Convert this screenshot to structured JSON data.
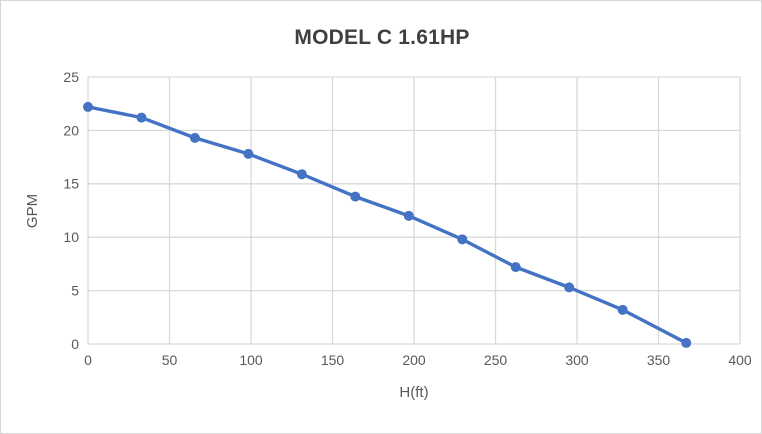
{
  "chart_data": {
    "type": "line",
    "title": "MODEL C 1.61HP",
    "xlabel": "H(ft)",
    "ylabel": "GPM",
    "xlim": [
      0,
      400
    ],
    "ylim": [
      0,
      25
    ],
    "xticks": [
      0,
      50,
      100,
      150,
      200,
      250,
      300,
      350,
      400
    ],
    "yticks": [
      0,
      5,
      10,
      15,
      20,
      25
    ],
    "grid": true,
    "legend": "none",
    "series": [
      {
        "name": "GPM vs H(ft)",
        "marker": "circle",
        "x": [
          0,
          32.8,
          65.6,
          98.4,
          131.2,
          164,
          196.8,
          229.6,
          262.4,
          295.2,
          328,
          367
        ],
        "y": [
          22.2,
          21.2,
          19.3,
          17.8,
          15.9,
          13.8,
          12.0,
          9.8,
          7.2,
          5.3,
          3.2,
          0.1
        ]
      }
    ]
  },
  "colors": {
    "series": "#4472C4",
    "grid": "#d9d9d9",
    "axis_text": "#595959",
    "title_text": "#404040",
    "frame_border": "#d6d6d6",
    "background": "#ffffff"
  }
}
